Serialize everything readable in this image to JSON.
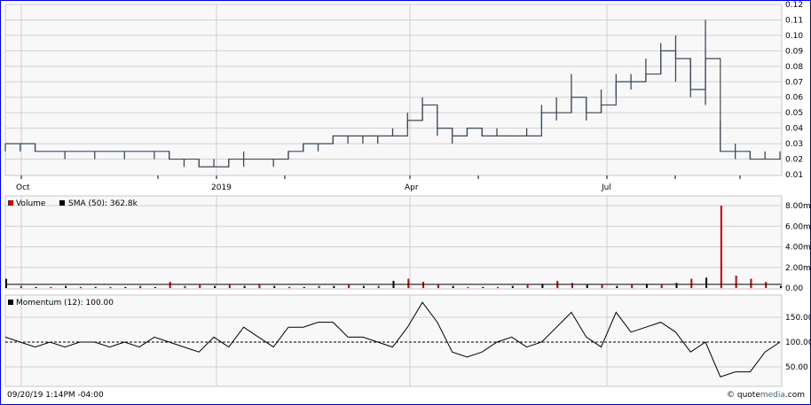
{
  "chart_data": [
    {
      "type": "ohlc-step",
      "panel": "price",
      "x_tick_labels": [
        "Oct",
        "2019",
        "Apr",
        "Jul"
      ],
      "y_tick_labels": [
        "0.12",
        "0.11",
        "0.10",
        "0.09",
        "0.08",
        "0.07",
        "0.06",
        "0.05",
        "0.04",
        "0.03",
        "0.02",
        "0.01"
      ],
      "ylim": [
        0.01,
        0.12
      ],
      "grid": true,
      "color": "#3d4a5c",
      "weeks": 53,
      "values": [
        0.03,
        0.03,
        0.025,
        0.025,
        0.025,
        0.025,
        0.025,
        0.025,
        0.025,
        0.025,
        0.025,
        0.02,
        0.02,
        0.015,
        0.015,
        0.02,
        0.02,
        0.02,
        0.02,
        0.025,
        0.03,
        0.03,
        0.035,
        0.035,
        0.035,
        0.035,
        0.035,
        0.045,
        0.055,
        0.04,
        0.035,
        0.04,
        0.035,
        0.035,
        0.035,
        0.035,
        0.05,
        0.05,
        0.06,
        0.05,
        0.055,
        0.07,
        0.07,
        0.075,
        0.09,
        0.085,
        0.065,
        0.085,
        0.025,
        0.025,
        0.02,
        0.02,
        0.02
      ],
      "highs": [
        0.03,
        0.03,
        0.03,
        0.025,
        0.025,
        0.025,
        0.025,
        0.025,
        0.025,
        0.025,
        0.025,
        0.025,
        0.02,
        0.02,
        0.02,
        0.02,
        0.025,
        0.02,
        0.02,
        0.025,
        0.03,
        0.03,
        0.035,
        0.035,
        0.035,
        0.035,
        0.04,
        0.05,
        0.06,
        0.055,
        0.04,
        0.04,
        0.04,
        0.04,
        0.035,
        0.04,
        0.055,
        0.06,
        0.075,
        0.06,
        0.065,
        0.075,
        0.075,
        0.085,
        0.095,
        0.1,
        0.085,
        0.11,
        0.045,
        0.03,
        0.025,
        0.025,
        0.025
      ],
      "lows": [
        0.025,
        0.025,
        0.025,
        0.025,
        0.02,
        0.025,
        0.02,
        0.025,
        0.02,
        0.025,
        0.02,
        0.02,
        0.015,
        0.015,
        0.015,
        0.015,
        0.015,
        0.02,
        0.015,
        0.02,
        0.025,
        0.025,
        0.03,
        0.03,
        0.03,
        0.03,
        0.035,
        0.04,
        0.045,
        0.035,
        0.03,
        0.035,
        0.035,
        0.035,
        0.035,
        0.035,
        0.04,
        0.045,
        0.05,
        0.045,
        0.05,
        0.06,
        0.065,
        0.07,
        0.075,
        0.07,
        0.06,
        0.055,
        0.025,
        0.02,
        0.02,
        0.02,
        0.02
      ]
    },
    {
      "type": "bar",
      "panel": "volume",
      "legend": [
        {
          "name": "Volume",
          "color": "#cc0000"
        },
        {
          "name": "SMA (50): 362.8k",
          "color": "#000000"
        }
      ],
      "y_tick_labels": [
        "8.00m",
        "6.00m",
        "4.00m",
        "2.00m",
        "0.00"
      ],
      "ylim": [
        0,
        8.5
      ],
      "unit": "millions",
      "values": [
        0.9,
        0.2,
        0.1,
        0.1,
        0.2,
        0.1,
        0.1,
        0.1,
        0.1,
        0.2,
        0.1,
        0.6,
        0.2,
        0.3,
        0.2,
        0.3,
        0.2,
        0.3,
        0.2,
        0.1,
        0.1,
        0.2,
        0.2,
        0.3,
        0.2,
        0.2,
        0.7,
        0.9,
        0.6,
        0.3,
        0.2,
        0.1,
        0.1,
        0.1,
        0.2,
        0.3,
        0.4,
        0.7,
        0.5,
        0.3,
        0.3,
        0.2,
        0.3,
        0.4,
        0.3,
        0.5,
        0.9,
        1.0,
        8.0,
        1.2,
        0.9,
        0.6,
        0.2
      ],
      "down": [
        false,
        true,
        false,
        true,
        false,
        true,
        false,
        true,
        false,
        true,
        false,
        true,
        true,
        true,
        false,
        true,
        false,
        true,
        false,
        true,
        false,
        true,
        false,
        true,
        false,
        true,
        false,
        true,
        true,
        true,
        false,
        true,
        false,
        true,
        false,
        true,
        false,
        true,
        true,
        false,
        true,
        false,
        true,
        false,
        true,
        false,
        true,
        false,
        true,
        true,
        true,
        true,
        false
      ]
    },
    {
      "type": "line",
      "panel": "momentum",
      "legend": [
        {
          "name": "Momentum (12): 100.00",
          "color": "#000000"
        }
      ],
      "y_tick_labels": [
        "150.00",
        "100.00",
        "50.00"
      ],
      "ylim": [
        5,
        195
      ],
      "reference_line": 100,
      "values": [
        110,
        100,
        90,
        100,
        90,
        100,
        100,
        90,
        100,
        90,
        110,
        100,
        90,
        80,
        110,
        90,
        130,
        110,
        90,
        130,
        130,
        140,
        140,
        110,
        110,
        100,
        90,
        130,
        180,
        140,
        80,
        70,
        80,
        100,
        110,
        90,
        100,
        130,
        160,
        110,
        90,
        160,
        120,
        130,
        140,
        120,
        80,
        100,
        30,
        40,
        40,
        80,
        100
      ]
    }
  ],
  "footer": {
    "timestamp": "09/20/19 1:14PM -04:00",
    "copyright": "© quote",
    "brand_accent": "media",
    "brand_tail": ".com"
  }
}
